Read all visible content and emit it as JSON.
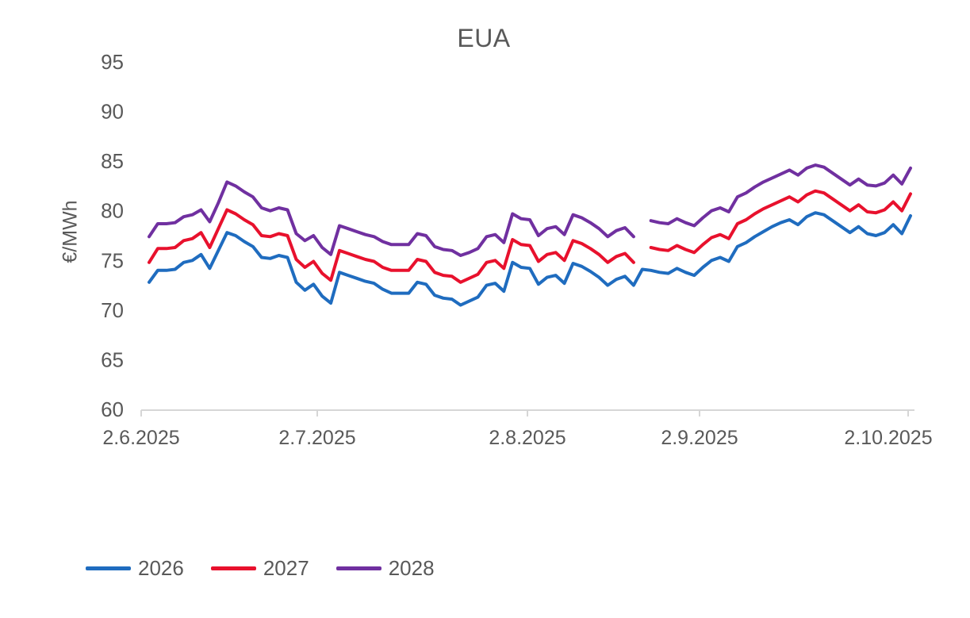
{
  "chart_data": {
    "type": "line",
    "title": "EUA",
    "ylabel": "€/MWh",
    "xlabel": "",
    "ylim": [
      60,
      95
    ],
    "y_ticks": [
      95,
      90,
      85,
      80,
      75,
      70,
      65,
      60
    ],
    "x_ticks": [
      "2.6.2025",
      "2.7.2025",
      "2.8.2025",
      "2.9.2025",
      "2.10.2025"
    ],
    "x_description": "Daily (weekday) settlement prices from 2.6.2025 to 2.10.2025; 2027 and 2028 series have one missing day (gap) around 20.8.2025",
    "grid": false,
    "legend_position": "bottom-left",
    "axis_color": "#d6d6d6",
    "text_color": "#595959",
    "series": [
      {
        "name": "2026",
        "color": "#1f6cbf",
        "values": [
          72.8,
          74.0,
          74.0,
          74.1,
          74.8,
          75.0,
          75.6,
          74.2,
          76.0,
          77.8,
          77.5,
          76.9,
          76.4,
          75.3,
          75.2,
          75.5,
          75.3,
          72.8,
          72.0,
          72.6,
          71.4,
          70.7,
          73.8,
          73.5,
          73.2,
          72.9,
          72.7,
          72.1,
          71.7,
          71.7,
          71.7,
          72.8,
          72.6,
          71.5,
          71.2,
          71.1,
          70.5,
          70.9,
          71.3,
          72.5,
          72.7,
          71.9,
          74.8,
          74.3,
          74.2,
          72.6,
          73.3,
          73.5,
          72.7,
          74.7,
          74.4,
          73.9,
          73.3,
          72.5,
          73.1,
          73.4,
          72.5,
          74.1,
          74.0,
          73.8,
          73.7,
          74.2,
          73.8,
          73.5,
          74.3,
          75.0,
          75.3,
          74.9,
          76.4,
          76.8,
          77.4,
          77.9,
          78.4,
          78.8,
          79.1,
          78.6,
          79.4,
          79.8,
          79.6,
          79.0,
          78.4,
          77.8,
          78.4,
          77.7,
          77.5,
          77.8,
          78.6,
          77.7,
          79.5
        ]
      },
      {
        "name": "2027",
        "color": "#e8112d",
        "values": [
          74.8,
          76.2,
          76.2,
          76.3,
          77.0,
          77.2,
          77.8,
          76.3,
          78.2,
          80.1,
          79.7,
          79.1,
          78.6,
          77.5,
          77.4,
          77.7,
          77.5,
          75.1,
          74.3,
          74.9,
          73.7,
          73.0,
          76.0,
          75.7,
          75.4,
          75.1,
          74.9,
          74.3,
          74.0,
          74.0,
          74.0,
          75.1,
          74.9,
          73.8,
          73.5,
          73.4,
          72.8,
          73.2,
          73.6,
          74.8,
          75.0,
          74.2,
          77.1,
          76.6,
          76.5,
          74.9,
          75.6,
          75.8,
          75.0,
          77.0,
          76.7,
          76.2,
          75.6,
          74.8,
          75.4,
          75.7,
          74.8,
          null,
          76.3,
          76.1,
          76.0,
          76.5,
          76.1,
          75.8,
          76.6,
          77.3,
          77.6,
          77.2,
          78.7,
          79.1,
          79.7,
          80.2,
          80.6,
          81.0,
          81.4,
          80.9,
          81.6,
          82.0,
          81.8,
          81.2,
          80.6,
          80.0,
          80.6,
          79.9,
          79.8,
          80.1,
          80.9,
          80.0,
          81.7
        ]
      },
      {
        "name": "2028",
        "color": "#7030a0",
        "values": [
          77.4,
          78.7,
          78.7,
          78.8,
          79.4,
          79.6,
          80.1,
          78.9,
          80.8,
          82.9,
          82.5,
          81.9,
          81.4,
          80.3,
          80.0,
          80.3,
          80.1,
          77.7,
          77.0,
          77.5,
          76.3,
          75.6,
          78.5,
          78.2,
          77.9,
          77.6,
          77.4,
          76.9,
          76.6,
          76.6,
          76.6,
          77.7,
          77.5,
          76.4,
          76.1,
          76.0,
          75.5,
          75.8,
          76.2,
          77.4,
          77.6,
          76.8,
          79.7,
          79.2,
          79.1,
          77.5,
          78.2,
          78.4,
          77.6,
          79.6,
          79.3,
          78.8,
          78.2,
          77.4,
          78.0,
          78.3,
          77.4,
          null,
          79.0,
          78.8,
          78.7,
          79.2,
          78.8,
          78.5,
          79.3,
          80.0,
          80.3,
          79.9,
          81.4,
          81.8,
          82.4,
          82.9,
          83.3,
          83.7,
          84.1,
          83.6,
          84.3,
          84.6,
          84.4,
          83.8,
          83.2,
          82.6,
          83.2,
          82.6,
          82.5,
          82.8,
          83.6,
          82.7,
          84.3
        ]
      }
    ]
  }
}
